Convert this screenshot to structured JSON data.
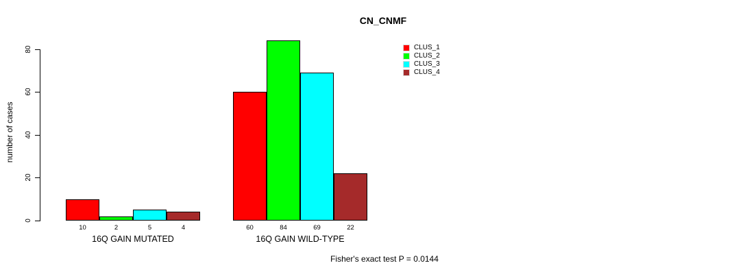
{
  "chart_data": {
    "type": "bar",
    "title": "CN_CNMF",
    "ylabel": "number of cases",
    "xlabel": "",
    "ylim": [
      0,
      84
    ],
    "yticks": [
      0,
      20,
      40,
      60,
      80
    ],
    "grid": false,
    "legend_position": "top-right",
    "categories": [
      "16Q GAIN MUTATED",
      "16Q GAIN WILD-TYPE"
    ],
    "series": [
      {
        "name": "CLUS_1",
        "color": "#ff0000",
        "values": [
          10,
          60
        ]
      },
      {
        "name": "CLUS_2",
        "color": "#00ff00",
        "values": [
          2,
          84
        ]
      },
      {
        "name": "CLUS_3",
        "color": "#00ffff",
        "values": [
          5,
          69
        ]
      },
      {
        "name": "CLUS_4",
        "color": "#a52a2a",
        "values": [
          4,
          22
        ]
      }
    ],
    "show_bar_value_labels": true,
    "annotation": "Fisher's exact test P = 0.0144"
  },
  "colors": {
    "axis": "#000000",
    "text": "#000000",
    "bar_border": "#000000",
    "background": "#ffffff",
    "legend_swatch_border": "#d9d9d9"
  }
}
